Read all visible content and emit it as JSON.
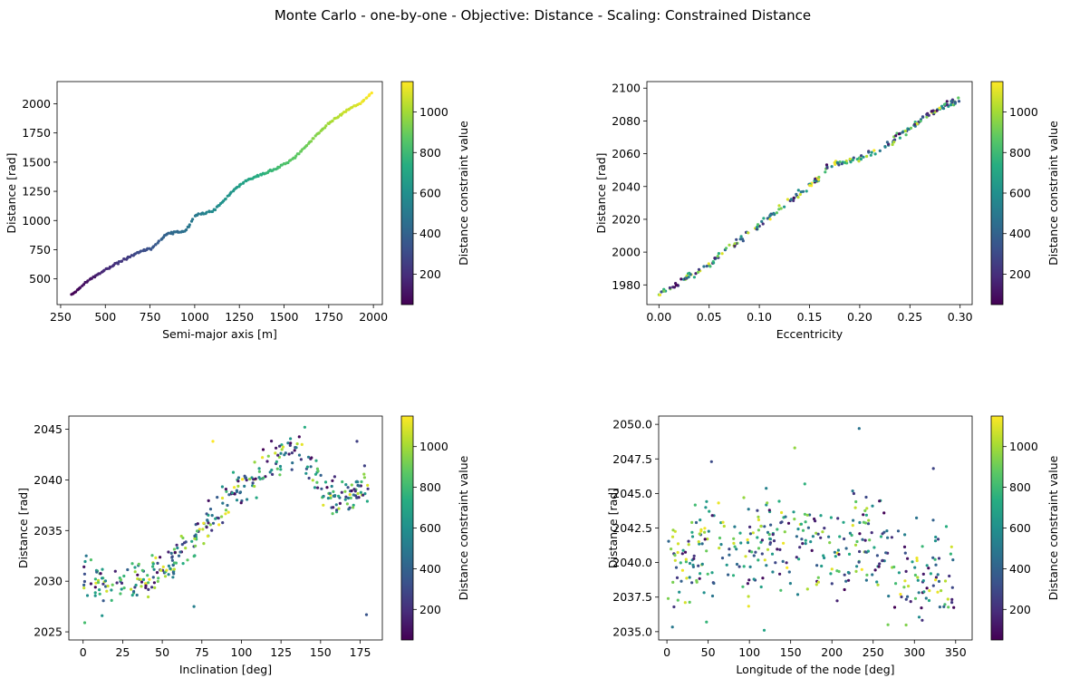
{
  "figure": {
    "title": "Monte Carlo - one-by-one - Objective: Distance - Scaling: Constrained Distance"
  },
  "colorbar": {
    "label": "Distance constraint value",
    "range": [
      50,
      1150
    ],
    "ticks": [
      200,
      400,
      600,
      800,
      1000
    ],
    "colormap": "viridis"
  },
  "chart_data": [
    {
      "type": "scatter",
      "xlabel": "Semi-major axis [m]",
      "ylabel": "Distance [rad]",
      "xlim": [
        230,
        2050
      ],
      "ylim": [
        280,
        2190
      ],
      "xticks": [
        250,
        500,
        750,
        1000,
        1250,
        1500,
        1750,
        2000
      ],
      "yticks": [
        500,
        750,
        1000,
        1250,
        1500,
        1750,
        2000
      ],
      "pattern": "monotonic",
      "points": 220,
      "trend_x": [
        310,
        400,
        500,
        600,
        700,
        760,
        800,
        850,
        950,
        1000,
        1050,
        1100,
        1150,
        1200,
        1250,
        1300,
        1350,
        1400,
        1450,
        1500,
        1550,
        1600,
        1650,
        1700,
        1750,
        1800,
        1850,
        1900,
        1950,
        1990
      ],
      "trend_y": [
        360,
        480,
        580,
        660,
        740,
        760,
        820,
        890,
        910,
        1040,
        1060,
        1080,
        1150,
        1230,
        1300,
        1350,
        1380,
        1410,
        1440,
        1480,
        1530,
        1600,
        1680,
        1760,
        1830,
        1890,
        1940,
        1980,
        2030,
        2090
      ],
      "noise": 6
    },
    {
      "type": "scatter",
      "xlabel": "Eccentricity",
      "ylabel": "Distance [rad]",
      "xlim": [
        -0.012,
        0.312
      ],
      "ylim": [
        1968,
        2104
      ],
      "xticks": [
        0.0,
        0.05,
        0.1,
        0.15,
        0.2,
        0.25,
        0.3
      ],
      "xtick_labels": [
        "0.00",
        "0.05",
        "0.10",
        "0.15",
        "0.20",
        "0.25",
        "0.30"
      ],
      "yticks": [
        1980,
        2000,
        2020,
        2040,
        2060,
        2080,
        2100
      ],
      "pattern": "trend",
      "points": 240,
      "trend_x": [
        0.0,
        0.05,
        0.1,
        0.15,
        0.17,
        0.2,
        0.22,
        0.25,
        0.27,
        0.3
      ],
      "trend_y": [
        1974,
        1992,
        2017,
        2040,
        2053,
        2057,
        2062,
        2076,
        2085,
        2093
      ],
      "noise": 1.6
    },
    {
      "type": "scatter",
      "xlabel": "Inclination [deg]",
      "ylabel": "Distance [rad]",
      "xlim": [
        -9,
        189
      ],
      "ylim": [
        2024.2,
        2046.3
      ],
      "xticks": [
        0,
        25,
        50,
        75,
        100,
        125,
        150,
        175
      ],
      "yticks": [
        2025,
        2030,
        2035,
        2040,
        2045
      ],
      "pattern": "trend",
      "points": 360,
      "trend_x": [
        0,
        10,
        20,
        30,
        40,
        50,
        60,
        70,
        80,
        90,
        100,
        110,
        120,
        130,
        140,
        150,
        160,
        170,
        180
      ],
      "trend_y": [
        2030.2,
        2029.8,
        2029.8,
        2030.0,
        2030.4,
        2031.2,
        2032.5,
        2034.0,
        2036.0,
        2038.0,
        2039.0,
        2040.5,
        2042.0,
        2043.0,
        2042.5,
        2039.5,
        2038.0,
        2038.5,
        2039.5
      ],
      "noise": 1.3,
      "outliers": [
        [
          1,
          2025.9
        ],
        [
          12,
          2026.6
        ],
        [
          70,
          2027.5
        ],
        [
          179,
          2026.7
        ],
        [
          2,
          2032.5
        ],
        [
          82,
          2043.8
        ],
        [
          140,
          2045.2
        ],
        [
          173,
          2043.8
        ]
      ]
    },
    {
      "type": "scatter",
      "xlabel": "Longitude of the node [deg]",
      "ylabel": "Distance [rad]",
      "xlim": [
        -10,
        370
      ],
      "ylim": [
        2034.4,
        2050.6
      ],
      "xticks": [
        0,
        50,
        100,
        150,
        200,
        250,
        300,
        350
      ],
      "yticks": [
        2035.0,
        2037.5,
        2040.0,
        2042.5,
        2045.0,
        2047.5,
        2050.0
      ],
      "ytick_labels": [
        "2035.0",
        "2037.5",
        "2040.0",
        "2042.5",
        "2045.0",
        "2047.5",
        "2050.0"
      ],
      "pattern": "cloud",
      "points": 380,
      "trend_x": [
        0,
        50,
        100,
        150,
        200,
        250,
        300,
        350
      ],
      "trend_y": [
        2039.5,
        2041.5,
        2041.2,
        2041.8,
        2041.0,
        2041.5,
        2039.0,
        2039.5
      ],
      "noise": 2.6,
      "outliers": [
        [
          233,
          2049.7
        ],
        [
          155,
          2048.3
        ],
        [
          54,
          2047.3
        ],
        [
          323,
          2046.8
        ],
        [
          118,
          2035.1
        ],
        [
          48,
          2035.7
        ],
        [
          268,
          2035.5
        ]
      ]
    }
  ]
}
